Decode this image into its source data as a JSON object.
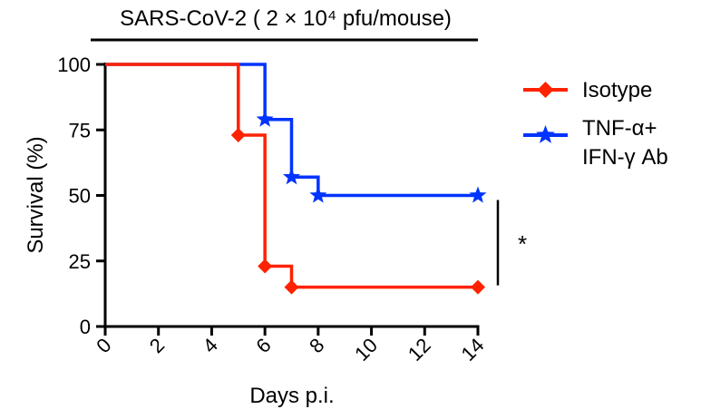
{
  "chart_data": {
    "type": "line",
    "subtype": "kaplan-meier-survival",
    "title": "SARS-CoV-2 ( 2 × 10⁴ pfu/mouse)",
    "xlabel": "Days p.i.",
    "ylabel": "Survival (%)",
    "xlim": [
      0,
      14
    ],
    "ylim": [
      0,
      100
    ],
    "xticks": [
      "0",
      "2",
      "4",
      "6",
      "8",
      "10",
      "12",
      "14"
    ],
    "yticks": [
      "0",
      "25",
      "50",
      "75",
      "100"
    ],
    "grid": false,
    "legend_position": "right",
    "significance": "*",
    "series": [
      {
        "name": "Isotype",
        "color": "#ff2200",
        "marker": "diamond",
        "steps": [
          [
            0,
            100
          ],
          [
            5,
            73
          ],
          [
            6,
            23
          ],
          [
            7,
            15
          ],
          [
            14,
            15
          ]
        ],
        "markers": [
          [
            5,
            73
          ],
          [
            6,
            23
          ],
          [
            7,
            15
          ],
          [
            14,
            15
          ]
        ]
      },
      {
        "name": "TNF-α+\nIFN-γ Ab",
        "legend_lines": [
          "TNF-α+",
          "IFN-γ Ab"
        ],
        "color": "#0033ff",
        "marker": "star",
        "steps": [
          [
            0,
            100
          ],
          [
            6,
            79
          ],
          [
            7,
            57
          ],
          [
            8,
            50
          ],
          [
            14,
            50
          ]
        ],
        "markers": [
          [
            6,
            79
          ],
          [
            7,
            57
          ],
          [
            8,
            50
          ],
          [
            14,
            50
          ]
        ]
      }
    ]
  }
}
